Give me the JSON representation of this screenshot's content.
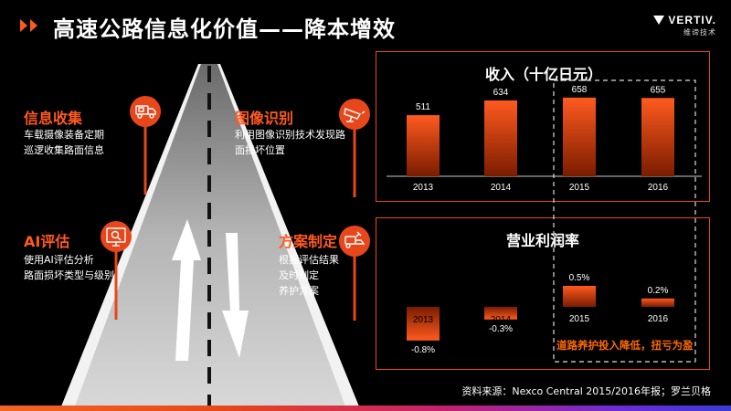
{
  "header": {
    "title": "高速公路信息化价值——降本增效",
    "logo_text": "VERTIV.",
    "logo_subtext": "维谛技术"
  },
  "blocks": [
    {
      "title": "信息收集",
      "lines": [
        "车载摄像装备定期",
        "巡逻收集路面信息"
      ],
      "icon": "truck-camera-icon"
    },
    {
      "title": "图像识别",
      "lines": [
        "利用图像识别技术发现路",
        "面损坏位置"
      ],
      "icon": "surveillance-camera-icon"
    },
    {
      "title": "AI评估",
      "lines": [
        "使用AI评估分析",
        "路面损坏类型与级别"
      ],
      "icon": "ai-monitor-icon"
    },
    {
      "title": "方案制定",
      "lines": [
        "根据评估结果",
        "及时制定",
        "养护方案"
      ],
      "icon": "road-repair-icon"
    }
  ],
  "callout": "道路养护投入降低，扭亏为盈",
  "footnote": "资料来源：Nexco Central 2015/2016年报；罗兰贝格",
  "colors": {
    "accent": "#e8471b",
    "bar_top": "#ff5a1f",
    "bar_bottom": "#7a1c00",
    "callout": "#ff6a00"
  },
  "chart_data": [
    {
      "type": "bar",
      "title": "收入（十亿日元）",
      "categories": [
        "2013",
        "2014",
        "2015",
        "2016"
      ],
      "values": [
        511,
        634,
        658,
        655
      ],
      "data_labels": [
        "511",
        "634",
        "658",
        "655"
      ],
      "highlighted_categories": [
        "2015",
        "2016"
      ]
    },
    {
      "type": "bar",
      "title": "营业利润率",
      "categories": [
        "2013",
        "2014",
        "2015",
        "2016"
      ],
      "values": [
        -0.8,
        -0.3,
        0.5,
        0.2
      ],
      "data_labels": [
        "-0.8%",
        "-0.3%",
        "0.5%",
        "0.2%"
      ],
      "highlighted_categories": [
        "2015",
        "2016"
      ]
    }
  ]
}
